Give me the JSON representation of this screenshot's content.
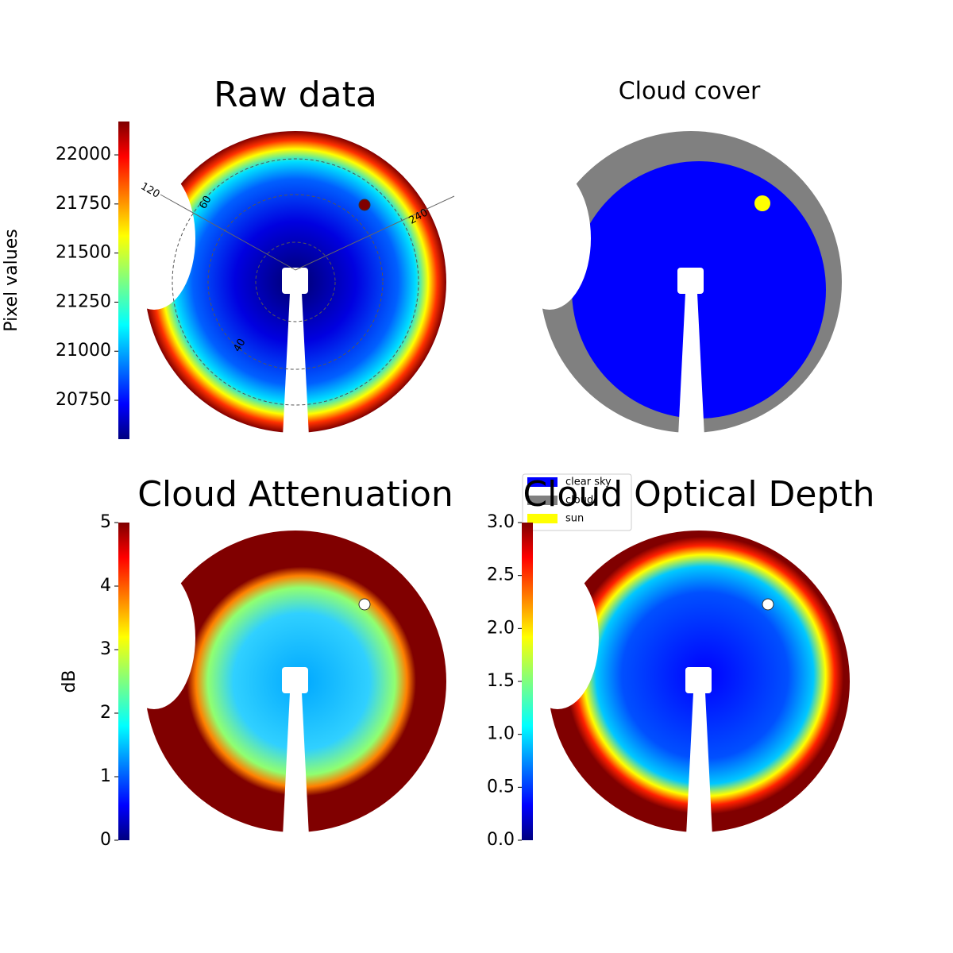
{
  "chart_data": [
    {
      "type": "heatmap",
      "title": "Raw data",
      "colorbar_label": "Pixel values",
      "ylim": [
        20552,
        22170
      ],
      "yticks": [
        20750,
        21000,
        21250,
        21500,
        21750,
        22000
      ],
      "colormap": "jet",
      "annotations": [
        "120",
        "60",
        "240",
        "40"
      ]
    },
    {
      "type": "categorical",
      "title": "Cloud cover",
      "categories": [
        "clear sky",
        "cloud",
        "sun"
      ],
      "colors": [
        "#0000ff",
        "#808080",
        "#ffff00"
      ]
    },
    {
      "type": "heatmap",
      "title": "Cloud Attenuation",
      "colorbar_label": "dB",
      "ylim": [
        0,
        5
      ],
      "yticks": [
        0,
        1,
        2,
        3,
        4,
        5
      ],
      "colormap": "jet"
    },
    {
      "type": "heatmap",
      "title": "Cloud Optical Depth",
      "ylim": [
        0,
        3
      ],
      "yticks": [
        {
          "value": 0,
          "label": "0.0"
        },
        0.5,
        {
          "value": 1,
          "label": "1.0"
        },
        1.5,
        {
          "value": 2,
          "label": "2.0"
        },
        2.5,
        {
          "value": 3,
          "label": "3.0"
        }
      ],
      "colormap": "jet"
    }
  ]
}
